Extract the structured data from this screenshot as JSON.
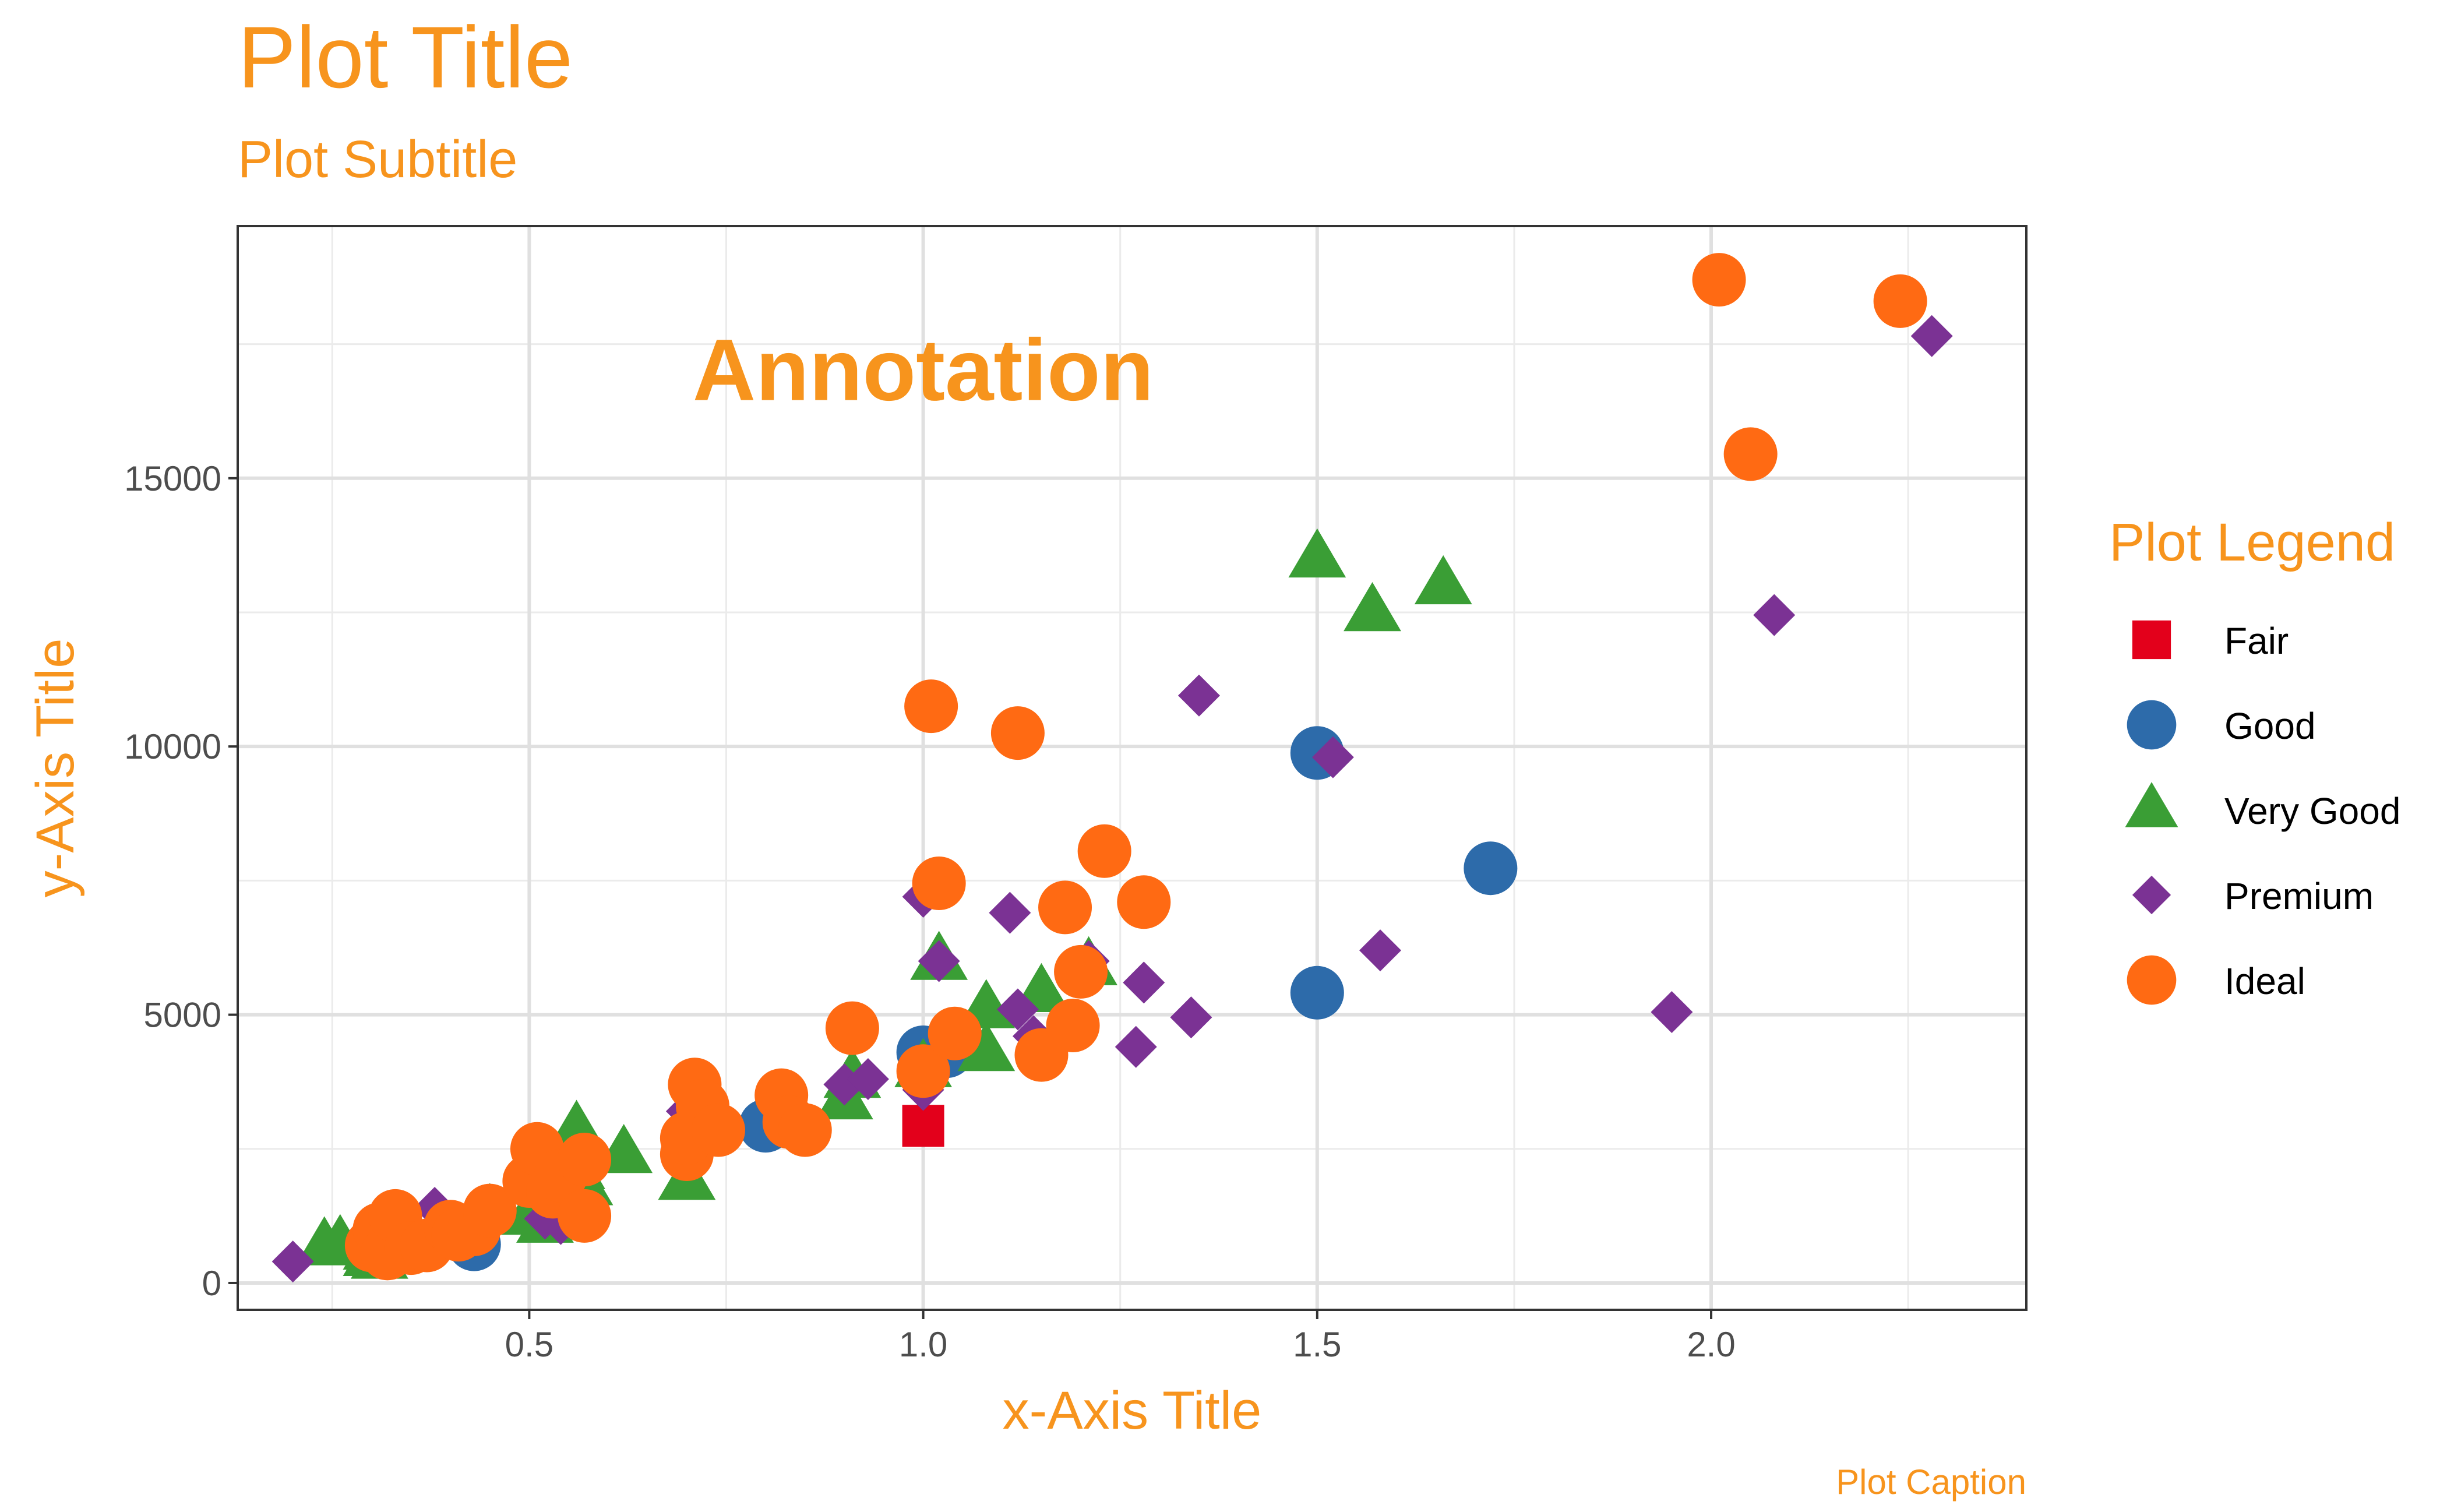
{
  "chart_data": {
    "type": "scatter",
    "title": "Plot Title",
    "subtitle": "Plot Subtitle",
    "caption": "Plot Caption",
    "xlabel": "x-Axis Title",
    "ylabel": "y-Axis Title",
    "annotation": {
      "text": "Annotation",
      "x": 1.0,
      "y": 17000
    },
    "xlim": [
      0.13,
      2.4
    ],
    "ylim": [
      -500,
      19700
    ],
    "x_ticks": [
      0.5,
      1.0,
      1.5,
      2.0
    ],
    "x_tick_labels": [
      "0.5",
      "1.0",
      "1.5",
      "2.0"
    ],
    "y_ticks": [
      0,
      5000,
      10000,
      15000
    ],
    "y_tick_labels": [
      "0",
      "5000",
      "10000",
      "15000"
    ],
    "grid": true,
    "legend": {
      "title": "Plot Legend",
      "position": "right"
    },
    "theme_color": "#F7941D",
    "series": [
      {
        "name": "Fair",
        "shape": "square",
        "color": "#E3001B",
        "points": [
          [
            1.0,
            2930
          ]
        ]
      },
      {
        "name": "Good",
        "shape": "circle",
        "color": "#2D6BAA",
        "points": [
          [
            0.43,
            720
          ],
          [
            0.8,
            2930
          ],
          [
            1.0,
            4300
          ],
          [
            1.03,
            4320
          ],
          [
            1.5,
            9880
          ],
          [
            1.5,
            5410
          ],
          [
            1.72,
            7730
          ]
        ]
      },
      {
        "name": "Very Good",
        "shape": "triangle",
        "color": "#3A9E35",
        "points": [
          [
            0.24,
            680
          ],
          [
            0.26,
            720
          ],
          [
            0.3,
            480
          ],
          [
            0.3,
            600
          ],
          [
            0.31,
            900
          ],
          [
            0.31,
            430
          ],
          [
            0.45,
            1300
          ],
          [
            0.5,
            1250
          ],
          [
            0.52,
            1100
          ],
          [
            0.56,
            2100
          ],
          [
            0.56,
            2850
          ],
          [
            0.57,
            1800
          ],
          [
            0.62,
            2400
          ],
          [
            0.7,
            1900
          ],
          [
            0.9,
            3400
          ],
          [
            0.91,
            3800
          ],
          [
            1.0,
            4000
          ],
          [
            1.02,
            6000
          ],
          [
            1.08,
            4300
          ],
          [
            1.08,
            5100
          ],
          [
            1.15,
            5400
          ],
          [
            1.21,
            5900
          ],
          [
            1.5,
            13500
          ],
          [
            1.57,
            12500
          ],
          [
            1.66,
            13000
          ]
        ]
      },
      {
        "name": "Premium",
        "shape": "diamond",
        "color": "#7B3294",
        "points": [
          [
            0.2,
            400
          ],
          [
            0.34,
            1100
          ],
          [
            0.38,
            1400
          ],
          [
            0.52,
            1200
          ],
          [
            0.54,
            1100
          ],
          [
            0.7,
            3200
          ],
          [
            0.71,
            2800
          ],
          [
            0.9,
            3700
          ],
          [
            0.93,
            3800
          ],
          [
            1.0,
            7200
          ],
          [
            1.0,
            3600
          ],
          [
            1.02,
            6000
          ],
          [
            1.11,
            6900
          ],
          [
            1.12,
            5100
          ],
          [
            1.14,
            4600
          ],
          [
            1.21,
            6000
          ],
          [
            1.27,
            4400
          ],
          [
            1.28,
            5600
          ],
          [
            1.34,
            4950
          ],
          [
            1.35,
            10950
          ],
          [
            1.52,
            9800
          ],
          [
            1.58,
            6200
          ],
          [
            1.95,
            5050
          ],
          [
            2.08,
            12450
          ],
          [
            2.28,
            17650
          ]
        ]
      },
      {
        "name": "Ideal",
        "shape": "circle",
        "color": "#FF6A13",
        "points": [
          [
            0.3,
            700
          ],
          [
            0.31,
            1000
          ],
          [
            0.32,
            550
          ],
          [
            0.33,
            1250
          ],
          [
            0.35,
            650
          ],
          [
            0.37,
            700
          ],
          [
            0.4,
            1050
          ],
          [
            0.41,
            900
          ],
          [
            0.43,
            1000
          ],
          [
            0.45,
            1350
          ],
          [
            0.5,
            1900
          ],
          [
            0.51,
            2500
          ],
          [
            0.53,
            1700
          ],
          [
            0.54,
            2000
          ],
          [
            0.57,
            1250
          ],
          [
            0.57,
            2300
          ],
          [
            0.7,
            2400
          ],
          [
            0.7,
            2700
          ],
          [
            0.71,
            3700
          ],
          [
            0.72,
            3300
          ],
          [
            0.74,
            2850
          ],
          [
            0.82,
            3500
          ],
          [
            0.83,
            3000
          ],
          [
            0.85,
            2850
          ],
          [
            0.91,
            4750
          ],
          [
            1.0,
            3950
          ],
          [
            1.01,
            10750
          ],
          [
            1.02,
            7450
          ],
          [
            1.04,
            4650
          ],
          [
            1.12,
            10250
          ],
          [
            1.15,
            4250
          ],
          [
            1.18,
            7000
          ],
          [
            1.19,
            4800
          ],
          [
            1.2,
            5800
          ],
          [
            1.23,
            8050
          ],
          [
            1.28,
            7100
          ],
          [
            2.01,
            18700
          ],
          [
            2.05,
            15450
          ],
          [
            2.24,
            18300
          ]
        ]
      }
    ]
  }
}
